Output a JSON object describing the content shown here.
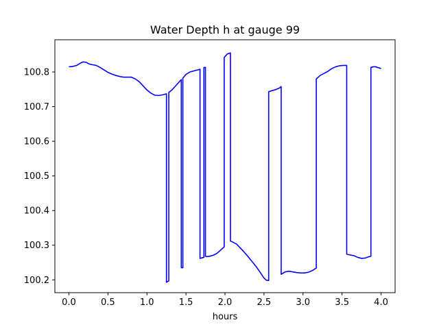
{
  "chart_data": {
    "type": "line",
    "title": "Water Depth h at gauge 99",
    "xlabel": "hours",
    "ylabel": "",
    "xlim": [
      -0.18,
      4.18
    ],
    "ylim": [
      100.163,
      100.893
    ],
    "x_ticks": [
      0.0,
      0.5,
      1.0,
      1.5,
      2.0,
      2.5,
      3.0,
      3.5,
      4.0
    ],
    "x_tick_labels": [
      "0.0",
      "0.5",
      "1.0",
      "1.5",
      "2.0",
      "2.5",
      "3.0",
      "3.5",
      "4.0"
    ],
    "y_ticks": [
      100.2,
      100.3,
      100.4,
      100.5,
      100.6,
      100.7,
      100.8
    ],
    "y_tick_labels": [
      "100.2",
      "100.3",
      "100.4",
      "100.5",
      "100.6",
      "100.7",
      "100.8"
    ],
    "grid": false,
    "legend": "none",
    "series": [
      {
        "color": "#0000ff",
        "x": [
          0.0,
          0.05,
          0.1,
          0.15,
          0.18,
          0.22,
          0.26,
          0.3,
          0.35,
          0.4,
          0.45,
          0.5,
          0.55,
          0.6,
          0.65,
          0.7,
          0.75,
          0.8,
          0.85,
          0.9,
          0.95,
          1.0,
          1.05,
          1.1,
          1.15,
          1.2,
          1.25,
          1.25,
          1.28,
          1.28,
          1.32,
          1.36,
          1.4,
          1.44,
          1.44,
          1.46,
          1.46,
          1.5,
          1.55,
          1.6,
          1.65,
          1.68,
          1.68,
          1.73,
          1.73,
          1.75,
          1.75,
          1.76,
          1.76,
          1.8,
          1.85,
          1.9,
          1.95,
          1.99,
          1.99,
          2.03,
          2.07,
          2.07,
          2.1,
          2.15,
          2.2,
          2.25,
          2.3,
          2.35,
          2.4,
          2.45,
          2.5,
          2.53,
          2.56,
          2.56,
          2.6,
          2.65,
          2.7,
          2.72,
          2.72,
          2.77,
          2.82,
          2.87,
          2.92,
          2.97,
          3.02,
          3.07,
          3.12,
          3.17,
          3.17,
          3.22,
          3.27,
          3.32,
          3.37,
          3.42,
          3.47,
          3.52,
          3.56,
          3.56,
          3.6,
          3.65,
          3.7,
          3.75,
          3.8,
          3.83,
          3.87,
          3.87,
          3.9,
          3.93,
          3.97,
          4.0
        ],
        "y": [
          100.815,
          100.816,
          100.819,
          100.826,
          100.829,
          100.828,
          100.823,
          100.821,
          100.819,
          100.813,
          100.806,
          100.799,
          100.794,
          100.79,
          100.787,
          100.785,
          100.785,
          100.785,
          100.78,
          100.772,
          100.76,
          100.748,
          100.739,
          100.733,
          100.732,
          100.734,
          100.737,
          100.193,
          100.197,
          100.741,
          100.748,
          100.758,
          100.768,
          100.778,
          100.235,
          100.235,
          100.782,
          100.793,
          100.8,
          100.803,
          100.806,
          100.808,
          100.262,
          100.265,
          100.813,
          100.813,
          100.268,
          100.267,
          100.267,
          100.268,
          100.271,
          100.277,
          100.287,
          100.295,
          100.842,
          100.852,
          100.855,
          100.312,
          100.309,
          100.303,
          100.291,
          100.279,
          100.266,
          100.252,
          100.238,
          100.222,
          100.205,
          100.199,
          100.198,
          100.743,
          100.746,
          100.749,
          100.754,
          100.758,
          100.216,
          100.223,
          100.225,
          100.223,
          100.221,
          100.22,
          100.22,
          100.222,
          100.227,
          100.234,
          100.78,
          100.79,
          100.796,
          100.802,
          100.81,
          100.815,
          100.818,
          100.819,
          100.819,
          100.274,
          100.272,
          100.27,
          100.265,
          100.262,
          100.263,
          100.266,
          100.268,
          100.813,
          100.815,
          100.815,
          100.812,
          100.81
        ]
      }
    ]
  }
}
